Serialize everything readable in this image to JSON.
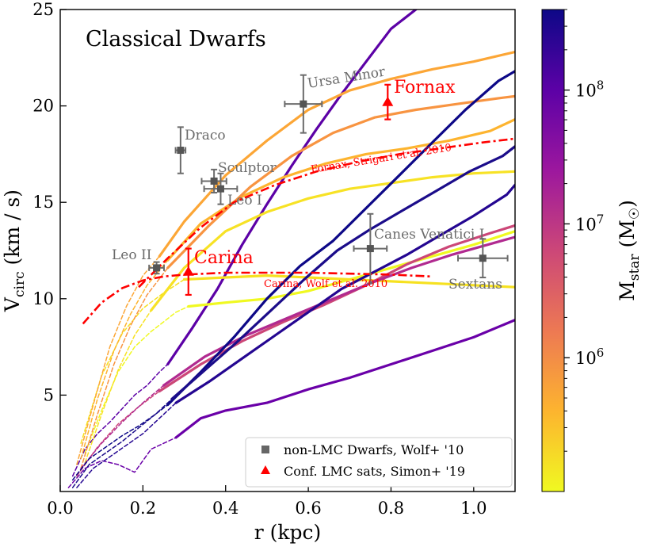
{
  "chart_data": {
    "type": "line",
    "title": "Classical Dwarfs",
    "xlabel": "r (kpc)",
    "ylabel_main": "V",
    "ylabel_sub": "circ",
    "ylabel_unit": " (km / s)",
    "xlim": [
      0.0,
      1.1
    ],
    "ylim": [
      0,
      25
    ],
    "x_ticks": [
      {
        "value": 0.0,
        "label": "0.0"
      },
      {
        "value": 0.2,
        "label": "0.2"
      },
      {
        "value": 0.4,
        "label": "0.4"
      },
      {
        "value": 0.6,
        "label": "0.6"
      },
      {
        "value": 0.8,
        "label": "0.8"
      },
      {
        "value": 1.0,
        "label": "1.0"
      }
    ],
    "y_ticks": [
      {
        "value": 5,
        "label": "5"
      },
      {
        "value": 10,
        "label": "10"
      },
      {
        "value": 15,
        "label": "15"
      },
      {
        "value": 20,
        "label": "20"
      },
      {
        "value": 25,
        "label": "25"
      }
    ],
    "grid": false,
    "legend": {
      "placement": "lower-right",
      "entries": [
        {
          "label": "non-LMC Dwarfs, Wolf+ '10",
          "marker": "square",
          "color": "#666666"
        },
        {
          "label": "Conf. LMC sats, Simon+ '19",
          "marker": "triangle",
          "color": "#ff0000"
        }
      ]
    },
    "colorbar": {
      "label_main": "M",
      "label_sub": "star",
      "label_unit_open": " (M",
      "label_unit_close": ")",
      "scale": "log",
      "range": [
        100000,
        400000000
      ],
      "ticks": [
        {
          "value": 1000000,
          "base": "10",
          "exp": "6"
        },
        {
          "value": 10000000,
          "base": "10",
          "exp": "7"
        },
        {
          "value": 100000000,
          "base": "10",
          "exp": "8"
        }
      ],
      "colormap": [
        "#f0f921",
        "#fdb42f",
        "#ed7953",
        "#cc4778",
        "#9c179e",
        "#5c01a6",
        "#0d0887"
      ]
    },
    "non_lmc_dwarfs": [
      {
        "name": "Ursa Minor",
        "x": 0.588,
        "y": 20.1,
        "xerr": 0.045,
        "yerr": 1.5
      },
      {
        "name": "Draco",
        "x": 0.291,
        "y": 17.7,
        "xerr": 0.012,
        "yerr": 1.2
      },
      {
        "name": "Sculptor",
        "x": 0.372,
        "y": 16.1,
        "xerr": 0.03,
        "yerr": 0.6
      },
      {
        "name": "Leo I",
        "x": 0.388,
        "y": 15.7,
        "xerr": 0.04,
        "yerr": 0.8
      },
      {
        "name": "Leo II",
        "x": 0.233,
        "y": 11.6,
        "xerr": 0.018,
        "yerr": 0.3
      },
      {
        "name": "Canes Venatici I",
        "x": 0.75,
        "y": 12.6,
        "xerr": 0.04,
        "yerr": 1.8
      },
      {
        "name": "Sextans",
        "x": 1.022,
        "y": 12.1,
        "xerr": 0.06,
        "yerr": 1.0
      }
    ],
    "lmc_sats": [
      {
        "name": "Fornax",
        "x": 0.792,
        "y": 20.2,
        "yerr": 0.9
      },
      {
        "name": "Carina",
        "x": 0.31,
        "y": 11.4,
        "yerr": 1.2
      }
    ],
    "literature_curves": [
      {
        "name": "Fornax, Strigari et al. 2010",
        "color": "#ff0000",
        "x": [
          0.19,
          0.26,
          0.34,
          0.42,
          0.52,
          0.62,
          0.72,
          0.82,
          0.92,
          1.02,
          1.1
        ],
        "y": [
          10.6,
          12.1,
          13.7,
          15.0,
          15.9,
          16.6,
          17.1,
          17.5,
          17.8,
          18.1,
          18.3
        ]
      },
      {
        "name": "Carina, Wolf et al. 2010",
        "color": "#ff0000",
        "x": [
          0.055,
          0.1,
          0.15,
          0.2,
          0.25,
          0.3,
          0.4,
          0.5,
          0.6,
          0.7,
          0.8,
          0.9
        ],
        "y": [
          8.7,
          9.8,
          10.55,
          10.95,
          11.15,
          11.25,
          11.35,
          11.35,
          11.35,
          11.3,
          11.25,
          11.15
        ]
      }
    ],
    "simulated_curves": [
      {
        "color": "#5c01a6",
        "x": [
          0.03,
          0.06,
          0.09,
          0.12,
          0.15,
          0.18,
          0.21,
          0.24,
          0.26
        ],
        "y": [
          0.8,
          2.2,
          3.0,
          3.6,
          4.3,
          5.0,
          5.5,
          6.2,
          6.6
        ],
        "dashed": true
      },
      {
        "color": "#5c01a6",
        "x": [
          0.26,
          0.32,
          0.38,
          0.44,
          0.5,
          0.56,
          0.62,
          0.68,
          0.74,
          0.8,
          0.86
        ],
        "y": [
          6.6,
          8.5,
          10.5,
          12.8,
          14.9,
          16.9,
          18.8,
          20.6,
          22.3,
          24.0,
          25.0
        ]
      },
      {
        "color": "#6a00a8",
        "x": [
          0.02,
          0.06,
          0.1,
          0.14,
          0.18,
          0.22,
          0.25,
          0.28
        ],
        "y": [
          0.2,
          1.2,
          1.6,
          1.4,
          1.0,
          2.2,
          2.5,
          2.8
        ],
        "dashed": true
      },
      {
        "color": "#6a00a8",
        "x": [
          0.28,
          0.34,
          0.4,
          0.5,
          0.6,
          0.7,
          0.8,
          0.9,
          1.0,
          1.1
        ],
        "y": [
          2.8,
          3.8,
          4.2,
          4.6,
          5.3,
          5.9,
          6.6,
          7.3,
          8.0,
          8.9
        ]
      },
      {
        "color": "#f0f921",
        "x": [
          0.06,
          0.1,
          0.14,
          0.18,
          0.22,
          0.25,
          0.28,
          0.31
        ],
        "y": [
          2.0,
          4.2,
          6.2,
          7.5,
          8.3,
          8.8,
          9.3,
          9.6
        ],
        "dashed": true
      },
      {
        "color": "#f0f921",
        "x": [
          0.31,
          0.4,
          0.5,
          0.6,
          0.7,
          0.8,
          0.9,
          1.0,
          1.1
        ],
        "y": [
          9.6,
          9.8,
          10.0,
          10.4,
          11.0,
          11.6,
          12.2,
          12.8,
          13.5
        ]
      },
      {
        "color": "#f6e120",
        "x": [
          0.05,
          0.1,
          0.15,
          0.2,
          0.25,
          0.3
        ],
        "y": [
          2.5,
          6.0,
          8.2,
          9.5,
          10.3,
          11.0
        ],
        "dashed": true
      },
      {
        "color": "#f6e120",
        "x": [
          0.3,
          0.4,
          0.5,
          0.6,
          0.7,
          0.8,
          0.9,
          1.0,
          1.1
        ],
        "y": [
          11.0,
          11.1,
          11.2,
          11.1,
          11.0,
          10.9,
          10.8,
          10.7,
          10.6
        ]
      },
      {
        "color": "#f7e225",
        "x": [
          0.06,
          0.1,
          0.14,
          0.18,
          0.22
        ],
        "y": [
          1.5,
          4.0,
          6.3,
          8.1,
          9.4
        ],
        "dashed": true
      },
      {
        "color": "#f7e225",
        "x": [
          0.22,
          0.3,
          0.4,
          0.5,
          0.6,
          0.7,
          0.8,
          0.9,
          1.0,
          1.1
        ],
        "y": [
          9.4,
          11.6,
          13.5,
          14.5,
          15.2,
          15.7,
          16.0,
          16.3,
          16.5,
          16.6
        ]
      },
      {
        "color": "#fca636",
        "x": [
          0.04,
          0.08,
          0.12,
          0.16,
          0.2,
          0.24
        ],
        "y": [
          1.4,
          4.5,
          7.5,
          9.6,
          11.2,
          12.2
        ],
        "dashed": true
      },
      {
        "color": "#fca636",
        "x": [
          0.24,
          0.3,
          0.4,
          0.5,
          0.6,
          0.7,
          0.8,
          0.9,
          1.0,
          1.1
        ],
        "y": [
          12.2,
          14.0,
          16.4,
          18.2,
          19.8,
          20.8,
          21.4,
          21.9,
          22.3,
          22.8
        ]
      },
      {
        "color": "#fdb42f",
        "x": [
          0.05,
          0.09,
          0.13,
          0.17,
          0.21,
          0.26
        ],
        "y": [
          1.7,
          4.8,
          7.3,
          9.2,
          10.7,
          12.0
        ],
        "dashed": true
      },
      {
        "color": "#fdb42f",
        "x": [
          0.26,
          0.34,
          0.44,
          0.54,
          0.64,
          0.74,
          0.84,
          0.94,
          1.04,
          1.1
        ],
        "y": [
          12.0,
          13.9,
          15.3,
          16.3,
          17.0,
          17.5,
          17.8,
          18.2,
          18.7,
          19.3
        ]
      },
      {
        "color": "#f89441",
        "x": [
          0.05,
          0.09,
          0.13,
          0.17,
          0.21,
          0.26
        ],
        "y": [
          1.2,
          4.0,
          6.6,
          8.6,
          10.2,
          11.6
        ],
        "dashed": true
      },
      {
        "color": "#f89441",
        "x": [
          0.26,
          0.36,
          0.46,
          0.56,
          0.66,
          0.76,
          0.86,
          0.96,
          1.06,
          1.1
        ],
        "y": [
          11.6,
          13.8,
          15.8,
          17.4,
          18.6,
          19.4,
          19.8,
          20.1,
          20.4,
          20.5
        ]
      },
      {
        "color": "#cc4778",
        "x": [
          0.04,
          0.09,
          0.14,
          0.19,
          0.24
        ],
        "y": [
          0.8,
          2.3,
          3.5,
          4.4,
          5.2
        ],
        "dashed": true
      },
      {
        "color": "#cc4778",
        "x": [
          0.24,
          0.34,
          0.44,
          0.54,
          0.64,
          0.74,
          0.84,
          0.94,
          1.04,
          1.1
        ],
        "y": [
          5.2,
          6.6,
          7.8,
          8.8,
          9.7,
          10.7,
          11.8,
          12.7,
          13.4,
          13.8
        ]
      },
      {
        "color": "#b12a90",
        "x": [
          0.05,
          0.1,
          0.15,
          0.2,
          0.25
        ],
        "y": [
          1.2,
          2.5,
          3.6,
          4.6,
          5.5
        ],
        "dashed": true
      },
      {
        "color": "#b12a90",
        "x": [
          0.25,
          0.35,
          0.45,
          0.55,
          0.65,
          0.75,
          0.85,
          0.95,
          1.05,
          1.1
        ],
        "y": [
          5.5,
          7.0,
          8.1,
          9.0,
          9.9,
          10.8,
          11.6,
          12.3,
          12.9,
          13.2
        ]
      },
      {
        "color": "#0d0887",
        "x": [
          0.03,
          0.07,
          0.11,
          0.15,
          0.19,
          0.23,
          0.26
        ],
        "y": [
          0.6,
          1.7,
          2.3,
          2.9,
          3.4,
          4.0,
          4.5
        ],
        "dashed": true
      },
      {
        "color": "#0d0887",
        "x": [
          0.26,
          0.34,
          0.42,
          0.5,
          0.58,
          0.66,
          0.74,
          0.82,
          0.9,
          0.98,
          1.06,
          1.1
        ],
        "y": [
          4.5,
          6.2,
          8.0,
          10.0,
          11.7,
          13.0,
          14.7,
          16.4,
          18.1,
          19.8,
          21.3,
          21.8
        ]
      },
      {
        "color": "#1b0c8a",
        "x": [
          0.03,
          0.07,
          0.11,
          0.15,
          0.19,
          0.23,
          0.27
        ],
        "y": [
          0.2,
          1.4,
          2.0,
          2.6,
          3.3,
          4.0,
          4.8
        ],
        "dashed": true
      },
      {
        "color": "#1b0c8a",
        "x": [
          0.27,
          0.35,
          0.43,
          0.51,
          0.59,
          0.67,
          0.75,
          0.83,
          0.91,
          0.99,
          1.07,
          1.1
        ],
        "y": [
          4.8,
          6.3,
          7.8,
          9.4,
          11.0,
          12.5,
          13.6,
          14.6,
          15.6,
          16.6,
          17.4,
          17.9
        ]
      },
      {
        "color": "#240691",
        "x": [
          0.04,
          0.08,
          0.12,
          0.16,
          0.2,
          0.24,
          0.28
        ],
        "y": [
          0.2,
          1.2,
          1.8,
          2.4,
          3.0,
          3.8,
          4.6
        ],
        "dashed": true
      },
      {
        "color": "#240691",
        "x": [
          0.28,
          0.36,
          0.44,
          0.52,
          0.6,
          0.68,
          0.76,
          0.84,
          0.92,
          1.0,
          1.08,
          1.1
        ],
        "y": [
          4.6,
          5.7,
          6.9,
          8.1,
          9.3,
          10.5,
          11.4,
          12.3,
          13.3,
          14.3,
          15.4,
          15.9
        ]
      }
    ]
  }
}
